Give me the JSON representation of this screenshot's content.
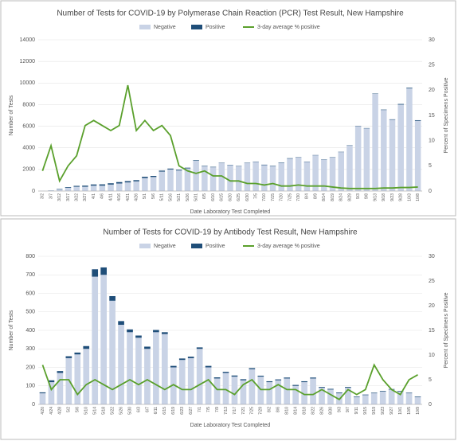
{
  "chart_data": [
    {
      "type": "bar",
      "title": "Number of Tests for COVID-19 by Polymerase Chain Reaction (PCR) Test Result, New Hampshire",
      "x_label": "Date Laboratory Test Completed",
      "y_label": "Number of Tests",
      "y2_label": "Percent of Specimens Positive",
      "categories": [
        "3/2",
        "3/7",
        "3/12",
        "3/17",
        "3/22",
        "3/27",
        "4/1",
        "4/6",
        "4/11",
        "4/16",
        "4/21",
        "4/26",
        "5/1",
        "5/6",
        "5/11",
        "5/16",
        "5/21",
        "5/26",
        "5/31",
        "6/5",
        "6/10",
        "6/15",
        "6/20",
        "6/25",
        "6/30",
        "7/5",
        "7/10",
        "7/15",
        "7/20",
        "7/25",
        "7/30",
        "8/4",
        "8/9",
        "8/14",
        "8/19",
        "8/24",
        "8/29",
        "9/3",
        "9/8",
        "9/13",
        "9/18",
        "9/23",
        "9/28",
        "10/3",
        "10/8"
      ],
      "series": [
        {
          "name": "Negative",
          "color": "#c9d3e6",
          "values": [
            10,
            50,
            150,
            300,
            400,
            400,
            500,
            500,
            600,
            700,
            800,
            900,
            1200,
            1300,
            1800,
            2000,
            1900,
            2100,
            2800,
            2300,
            2200,
            2600,
            2400,
            2300,
            2600,
            2700,
            2400,
            2300,
            2600,
            3000,
            3100,
            2700,
            3300,
            2900,
            3100,
            3600,
            4200,
            6000,
            5800,
            9000,
            7500,
            6600,
            8000,
            9500,
            6500
          ]
        },
        {
          "name": "Positive",
          "color": "#1f4e79",
          "values": [
            2,
            10,
            40,
            60,
            80,
            100,
            110,
            120,
            120,
            130,
            120,
            110,
            120,
            100,
            90,
            80,
            70,
            60,
            50,
            40,
            40,
            30,
            30,
            30,
            30,
            30,
            40,
            40,
            40,
            40,
            30,
            30,
            30,
            30,
            30,
            30,
            30,
            30,
            30,
            30,
            40,
            40,
            60,
            60,
            60
          ]
        },
        {
          "name": "3-day average % positive",
          "color": "#5aa02c",
          "axis": "y2",
          "values": [
            4,
            9,
            2,
            5,
            7,
            13,
            14,
            13,
            12,
            13,
            21,
            12,
            14,
            12,
            13,
            11,
            5,
            4,
            3.5,
            4,
            3,
            3,
            2,
            2,
            1.5,
            1.5,
            1.2,
            1.5,
            1,
            1,
            1.2,
            1,
            1,
            1,
            0.8,
            0.6,
            0.5,
            0.5,
            0.5,
            0.5,
            0.6,
            0.6,
            0.7,
            0.7,
            0.8
          ]
        }
      ],
      "ylim": [
        0,
        14000
      ],
      "yticks": [
        0,
        2000,
        4000,
        6000,
        8000,
        10000,
        12000,
        14000
      ],
      "y2lim": [
        0,
        30
      ],
      "y2ticks": [
        0,
        5,
        10,
        15,
        20,
        25,
        30
      ]
    },
    {
      "type": "bar",
      "title": "Number of Tests for COVID-19 by Antibody Test Result, New Hampshire",
      "x_label": "Date Laboratory Test Completed",
      "y_label": "Number of Tests",
      "y2_label": "Percent of Specimens Positive",
      "categories": [
        "4/20",
        "4/24",
        "4/28",
        "5/2",
        "5/6",
        "5/10",
        "5/14",
        "5/18",
        "5/22",
        "5/26",
        "5/30",
        "6/3",
        "6/7",
        "6/11",
        "6/15",
        "6/19",
        "6/23",
        "6/27",
        "7/1",
        "7/5",
        "7/9",
        "7/13",
        "7/17",
        "7/21",
        "7/25",
        "7/29",
        "8/2",
        "8/6",
        "8/10",
        "8/14",
        "8/18",
        "8/22",
        "8/26",
        "8/30",
        "9/3",
        "9/7",
        "9/11",
        "9/15",
        "9/19",
        "9/23",
        "9/27",
        "10/1",
        "10/5",
        "10/9"
      ],
      "series": [
        {
          "name": "Negative",
          "color": "#c9d3e6",
          "values": [
            60,
            120,
            170,
            250,
            270,
            300,
            690,
            700,
            560,
            430,
            390,
            360,
            300,
            390,
            380,
            200,
            240,
            250,
            300,
            200,
            140,
            170,
            150,
            130,
            190,
            150,
            120,
            130,
            140,
            100,
            120,
            140,
            90,
            80,
            60,
            90,
            40,
            50,
            60,
            70,
            80,
            70,
            60,
            40
          ]
        },
        {
          "name": "Positive",
          "color": "#1f4e79",
          "values": [
            5,
            10,
            10,
            10,
            10,
            15,
            40,
            40,
            25,
            20,
            15,
            12,
            12,
            12,
            10,
            8,
            8,
            8,
            8,
            8,
            6,
            6,
            6,
            6,
            6,
            5,
            5,
            5,
            5,
            5,
            5,
            5,
            4,
            4,
            4,
            4,
            3,
            3,
            3,
            3,
            3,
            3,
            3,
            3
          ]
        },
        {
          "name": "3-day average % positive",
          "color": "#5aa02c",
          "axis": "y2",
          "values": [
            8,
            3,
            5,
            5,
            2,
            4,
            5,
            4,
            3,
            4,
            5,
            4,
            5,
            4,
            3,
            4,
            3,
            3,
            4,
            5,
            3,
            3,
            2,
            4,
            5,
            3,
            3,
            4,
            3,
            3,
            2,
            2,
            3,
            2,
            1,
            3,
            2,
            3,
            8,
            5,
            3,
            2,
            5,
            6
          ]
        }
      ],
      "ylim": [
        0,
        800
      ],
      "yticks": [
        0,
        100,
        200,
        300,
        400,
        500,
        600,
        700,
        800
      ],
      "y2lim": [
        0,
        30
      ],
      "y2ticks": [
        0,
        5,
        10,
        15,
        20,
        25,
        30
      ]
    }
  ]
}
